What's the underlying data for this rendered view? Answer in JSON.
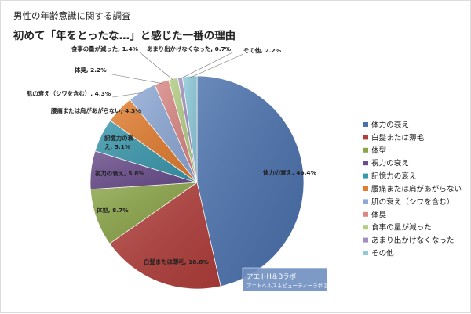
{
  "header": {
    "title": "男性の年齢意識に関する調査",
    "subtitle": "初めて「年をとったな…」と感じた一番の理由"
  },
  "source": {
    "line1": "アエトH＆Bラボ",
    "line2": "アエトヘルス＆ビューティーラボ 調べ"
  },
  "chart_data": {
    "type": "pie",
    "title": "初めて「年をとったな…」と感じた一番の理由",
    "legend_position": "right",
    "unit": "%",
    "slices": [
      {
        "name": "体力の衰え",
        "value": 46.4,
        "label": "体力の衰え, 46.4%",
        "color": "#4a71ad"
      },
      {
        "name": "白髪または薄毛",
        "value": 18.8,
        "label": "白髪または薄毛, 18.8%",
        "color": "#b13e3b"
      },
      {
        "name": "体型",
        "value": 8.7,
        "label": "体型, 8.7%",
        "color": "#8ba548"
      },
      {
        "name": "視力の衰え",
        "value": 5.8,
        "label": "視力の衰え, 5.8%",
        "color": "#6a4d8c"
      },
      {
        "name": "記憶力の衰え",
        "value": 5.1,
        "label_lines": [
          "記憶力の衰",
          "え, 5.1%"
        ],
        "color": "#3a98ad"
      },
      {
        "name": "腰痛または肩があがらない",
        "value": 4.3,
        "label": "腰痛または肩があがらない, 4.3%",
        "color": "#e27d2f"
      },
      {
        "name": "肌の衰え（シワを含む）",
        "value": 4.3,
        "label": "肌の衰え（シワを含む）, 4.3%",
        "color": "#8ea9d6"
      },
      {
        "name": "体臭",
        "value": 2.2,
        "label": "体臭, 2.2%",
        "color": "#d98884"
      },
      {
        "name": "食事の量が減った",
        "value": 1.4,
        "label": "食事の量が減った, 1.4%",
        "color": "#b3cd85"
      },
      {
        "name": "あまり出かけなくなった",
        "value": 0.7,
        "label": "あまり出かけなくなった, 0.7%",
        "color": "#a08fbf"
      },
      {
        "name": "その他",
        "value": 2.2,
        "label": "その他, 2.2%",
        "color": "#8fcbdb"
      }
    ]
  }
}
